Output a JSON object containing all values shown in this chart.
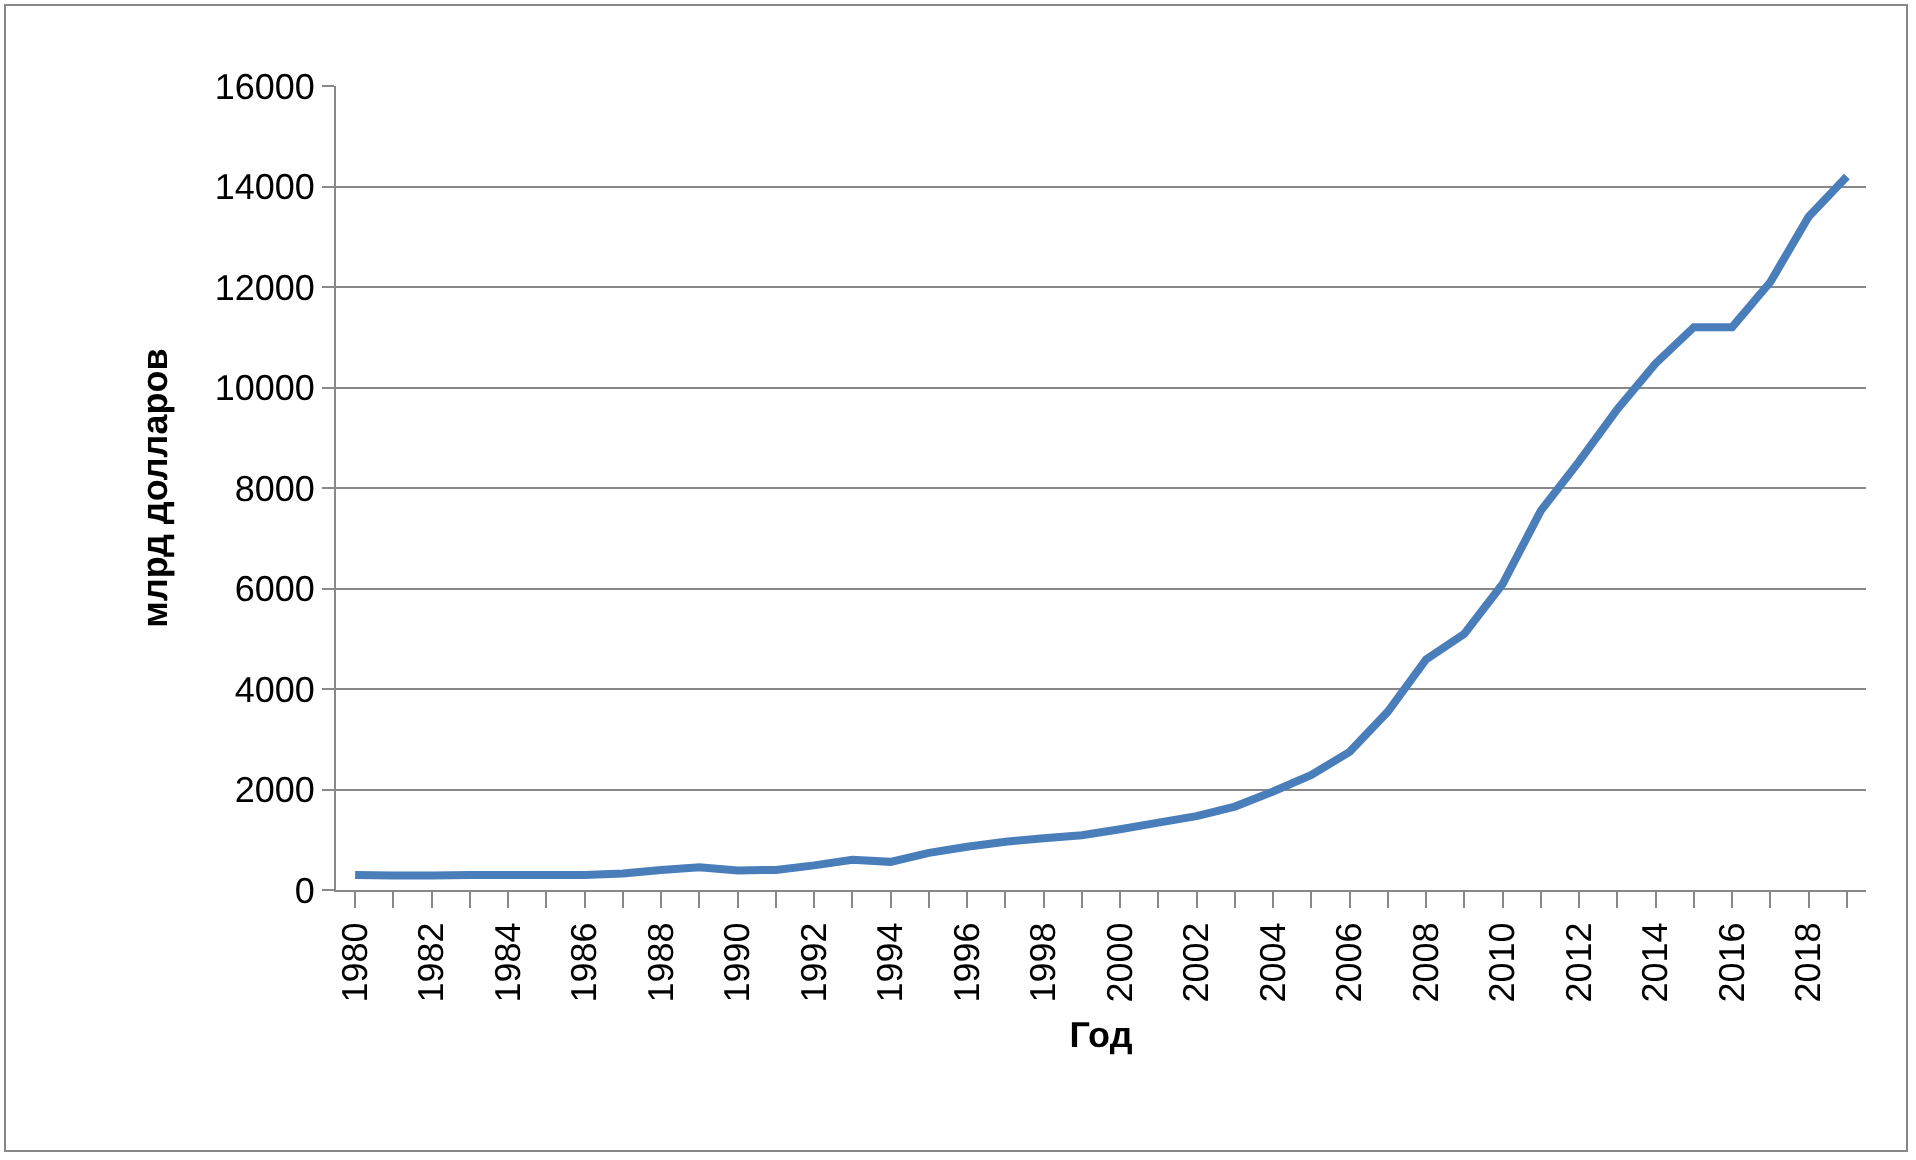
{
  "chart_data": {
    "type": "line",
    "xlabel": "Год",
    "ylabel": "млрд долларов",
    "x": [
      1980,
      1981,
      1982,
      1983,
      1984,
      1985,
      1986,
      1987,
      1988,
      1989,
      1990,
      1991,
      1992,
      1993,
      1994,
      1995,
      1996,
      1997,
      1998,
      1999,
      2000,
      2001,
      2002,
      2003,
      2004,
      2005,
      2006,
      2007,
      2008,
      2009,
      2010,
      2011,
      2012,
      2013,
      2014,
      2015,
      2016,
      2017,
      2018,
      2019
    ],
    "series": [
      {
        "color": "#4a7ebb",
        "values": [
          300,
          290,
          290,
          300,
          300,
          300,
          300,
          330,
          400,
          450,
          390,
          400,
          490,
          600,
          560,
          740,
          860,
          960,
          1030,
          1090,
          1210,
          1340,
          1470,
          1660,
          1960,
          2290,
          2750,
          3550,
          4590,
          5100,
          6090,
          7550,
          8530,
          9570,
          10480,
          11200,
          11200,
          12100,
          13400,
          14200
        ]
      }
    ],
    "xlim": [
      1979.5,
      2019.5
    ],
    "xticks": [
      1980,
      {
        "value": 1981,
        "label": null
      },
      1982,
      {
        "value": 1983,
        "label": null
      },
      1984,
      {
        "value": 1985,
        "label": null
      },
      1986,
      {
        "value": 1987,
        "label": null
      },
      1988,
      {
        "value": 1989,
        "label": null
      },
      1990,
      {
        "value": 1991,
        "label": null
      },
      1992,
      {
        "value": 1993,
        "label": null
      },
      1994,
      {
        "value": 1995,
        "label": null
      },
      1996,
      {
        "value": 1997,
        "label": null
      },
      1998,
      {
        "value": 1999,
        "label": null
      },
      2000,
      {
        "value": 2001,
        "label": null
      },
      2002,
      {
        "value": 2003,
        "label": null
      },
      2004,
      {
        "value": 2005,
        "label": null
      },
      2006,
      {
        "value": 2007,
        "label": null
      },
      2008,
      {
        "value": 2009,
        "label": null
      },
      2010,
      {
        "value": 2011,
        "label": null
      },
      2012,
      {
        "value": 2013,
        "label": null
      },
      2014,
      {
        "value": 2015,
        "label": null
      },
      2016,
      {
        "value": 2017,
        "label": null
      },
      2018,
      {
        "value": 2019,
        "label": null
      }
    ],
    "ylim": [
      0,
      16000
    ],
    "yticks": [
      0,
      2000,
      4000,
      6000,
      8000,
      10000,
      12000,
      14000,
      16000
    ],
    "grid": "y",
    "legend": false,
    "marker": "none",
    "line_style": "solid"
  }
}
